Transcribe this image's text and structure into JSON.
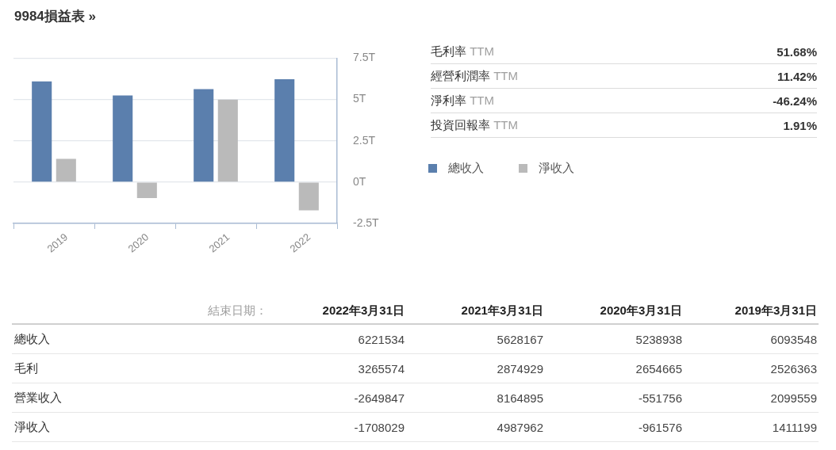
{
  "chart_data": [
    {
      "type": "bar",
      "title": "9984損益表 »",
      "categories": [
        "2019",
        "2020",
        "2021",
        "2022"
      ],
      "series": [
        {
          "name": "總收入",
          "color": "#5b7fad",
          "values": [
            6.09,
            5.24,
            5.63,
            6.22
          ]
        },
        {
          "name": "淨收入",
          "color": "#bababa",
          "values": [
            1.41,
            -0.96,
            4.99,
            -1.71
          ]
        }
      ],
      "ylim": [
        -2.5,
        7.5
      ],
      "yticks": [
        {
          "value": -2.5,
          "label": "-2.5T"
        },
        {
          "value": 0,
          "label": "0T"
        },
        {
          "value": 2.5,
          "label": "2.5T"
        },
        {
          "value": 5,
          "label": "5T"
        },
        {
          "value": 7.5,
          "label": "7.5T"
        }
      ],
      "grid": "y",
      "legend": "right"
    },
    {
      "type": "other",
      "categories": [
        "毛利率 TTM",
        "經營利潤率 TTM",
        "淨利率 TTM",
        "投資回報率 TTM"
      ],
      "value_labels": [
        "51.68%",
        "11.42%",
        "-46.24%",
        "1.91%"
      ]
    },
    {
      "type": "other",
      "xlabel": "結束日期：",
      "categories": [
        "2022年3月31日",
        "2021年3月31日",
        "2020年3月31日",
        "2019年3月31日"
      ],
      "series": [
        {
          "name": "總收入",
          "values": [
            6221534,
            5628167,
            5238938,
            6093548
          ]
        },
        {
          "name": "毛利",
          "values": [
            3265574,
            2874929,
            2654665,
            2526363
          ]
        },
        {
          "name": "營業收入",
          "values": [
            -2649847,
            8164895,
            -551756,
            2099559
          ]
        },
        {
          "name": "淨收入",
          "values": [
            -1708029,
            4987962,
            -961576,
            1411199
          ]
        }
      ],
      "data_labels": true
    }
  ]
}
